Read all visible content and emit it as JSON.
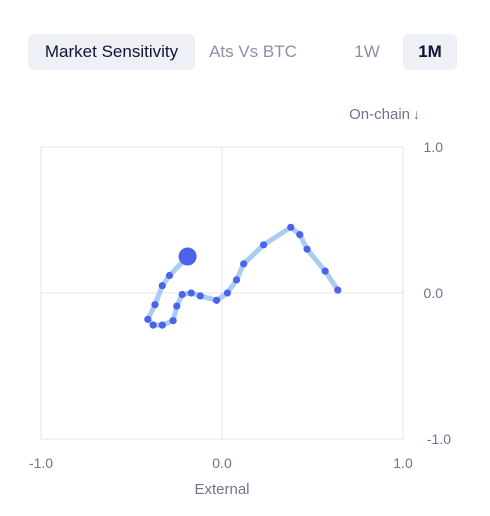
{
  "tabs": [
    {
      "label": "Market Sensitivity",
      "active": true
    },
    {
      "label": "Ats Vs BTC",
      "active": false
    }
  ],
  "ranges": [
    {
      "label": "1W",
      "active": false
    },
    {
      "label": "1M",
      "active": true
    }
  ],
  "colors": {
    "path_line": "#a9cdf2",
    "point": "#4a63e8",
    "grid": "#e1e4ec",
    "active_tab_bg": "#eef0f5"
  },
  "chart_data": {
    "type": "scatter",
    "xlabel": "External",
    "ylabel": "On-chain",
    "ylabel_arrow": "↓",
    "xlim": [
      -1.0,
      1.0
    ],
    "ylim": [
      -1.0,
      1.0
    ],
    "x_ticks": [
      "-1.0",
      "0.0",
      "1.0"
    ],
    "y_ticks": [
      "1.0",
      "0.0",
      "-1.0"
    ],
    "grid": true,
    "points": [
      {
        "x": 0.64,
        "y": 0.02
      },
      {
        "x": 0.57,
        "y": 0.15
      },
      {
        "x": 0.47,
        "y": 0.3
      },
      {
        "x": 0.43,
        "y": 0.4
      },
      {
        "x": 0.38,
        "y": 0.45
      },
      {
        "x": 0.23,
        "y": 0.33
      },
      {
        "x": 0.12,
        "y": 0.2
      },
      {
        "x": 0.08,
        "y": 0.09
      },
      {
        "x": 0.03,
        "y": 0.0
      },
      {
        "x": -0.03,
        "y": -0.05
      },
      {
        "x": -0.12,
        "y": -0.02
      },
      {
        "x": -0.17,
        "y": 0.0
      },
      {
        "x": -0.22,
        "y": -0.01
      },
      {
        "x": -0.25,
        "y": -0.09
      },
      {
        "x": -0.27,
        "y": -0.19
      },
      {
        "x": -0.33,
        "y": -0.22
      },
      {
        "x": -0.38,
        "y": -0.22
      },
      {
        "x": -0.41,
        "y": -0.18
      },
      {
        "x": -0.37,
        "y": -0.08
      },
      {
        "x": -0.33,
        "y": 0.05
      },
      {
        "x": -0.29,
        "y": 0.12
      },
      {
        "x": -0.19,
        "y": 0.25
      }
    ],
    "current_point_index": 21
  }
}
